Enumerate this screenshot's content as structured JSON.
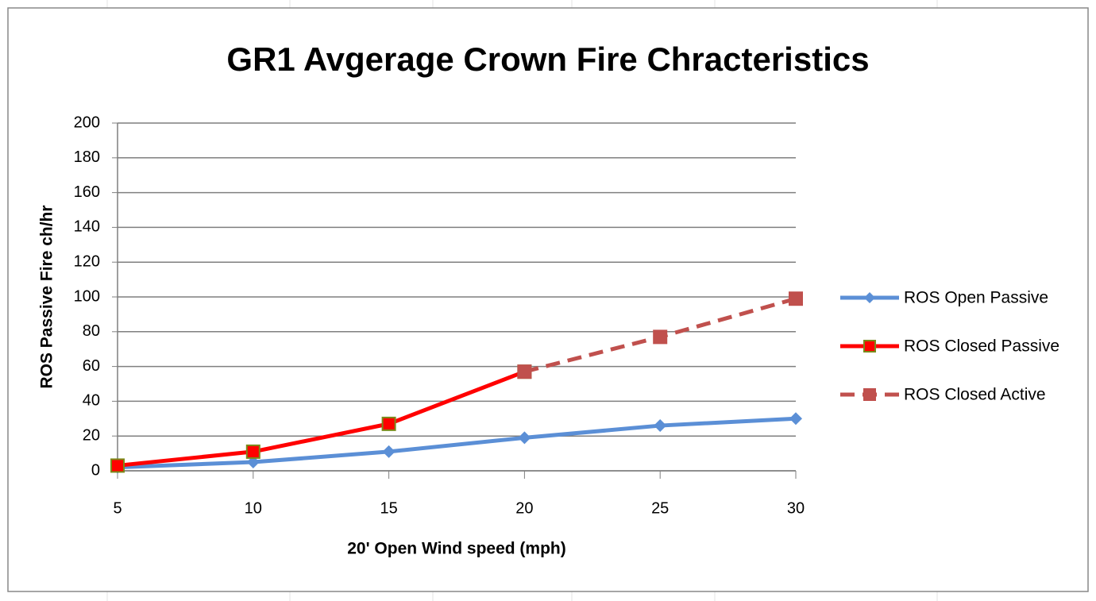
{
  "chart_data": {
    "type": "line",
    "title": "GR1 Avgerage Crown Fire Chracteristics",
    "x_label": "20' Open Wind speed (mph)",
    "y_label": "ROS  Passive  Fire ch/hr",
    "x": [
      5,
      10,
      15,
      20,
      25,
      30
    ],
    "xlim": [
      5,
      30
    ],
    "xticks": [
      5,
      10,
      15,
      20,
      25,
      30
    ],
    "ylim": [
      0,
      200
    ],
    "yticks": [
      0,
      20,
      40,
      60,
      80,
      100,
      120,
      140,
      160,
      180,
      200
    ],
    "grid": true,
    "legend": "right",
    "series": [
      {
        "name": "ROS Open Passive",
        "color": "#5b8fd6",
        "marker": "diamond",
        "dashed": false,
        "values": [
          2,
          5,
          11,
          19,
          26,
          30
        ]
      },
      {
        "name": "ROS Closed Passive",
        "color": "#ff0000",
        "marker": "square",
        "dashed": false,
        "values": [
          3,
          11,
          27,
          57,
          null,
          null
        ]
      },
      {
        "name": "ROS Closed Active",
        "color": "#c0504d",
        "marker": "square",
        "dashed": true,
        "values": [
          null,
          null,
          null,
          57,
          77,
          99
        ]
      }
    ]
  }
}
